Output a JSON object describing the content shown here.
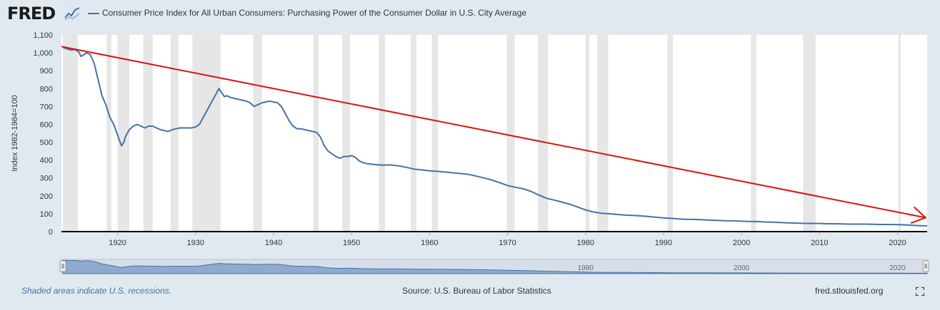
{
  "header": {
    "logo_text": "FRED",
    "logo_icon": "line-chart-icon",
    "series_title": "Consumer Price Index for All Urban Consumers: Purchasing Power of the Consumer Dollar in U.S. City Average"
  },
  "footer": {
    "recession_note": "Shaded areas indicate U.S. recessions.",
    "source": "Source: U.S. Bureau of Labor Statistics",
    "site": "fred.stlouisfed.org",
    "fullscreen_icon": "fullscreen-icon"
  },
  "colors": {
    "background": "#e1e9f0",
    "plot_background": "#ffffff",
    "series_line": "#4572a7",
    "recession_shade": "#e6e6e6",
    "annotation_arrow": "#dd1111",
    "navigator_fill": "#8fa9cf"
  },
  "chart_data": {
    "type": "line",
    "title": "Consumer Price Index for All Urban Consumers: Purchasing Power of the Consumer Dollar in U.S. City Average",
    "ylabel": "Index 1982-1984=100",
    "xlabel": "",
    "ylim": [
      0,
      1100
    ],
    "xlim": [
      1912.8,
      2023.8
    ],
    "y_ticks": [
      0,
      100,
      200,
      300,
      400,
      500,
      600,
      700,
      800,
      900,
      1000,
      1100
    ],
    "y_tick_labels": [
      "0",
      "100",
      "200",
      "300",
      "400",
      "500",
      "600",
      "700",
      "800",
      "900",
      "1,000",
      "1,100"
    ],
    "x_ticks": [
      1920,
      1930,
      1940,
      1950,
      1960,
      1970,
      1980,
      1990,
      2000,
      2010,
      2020
    ],
    "x_tick_labels": [
      "1920",
      "1930",
      "1940",
      "1950",
      "1960",
      "1970",
      "1980",
      "1990",
      "2000",
      "2010",
      "2020"
    ],
    "navigator_labels": [
      {
        "year": 1980,
        "label": "1980"
      },
      {
        "year": 2000,
        "label": "2000"
      },
      {
        "year": 2020,
        "label": "2020"
      }
    ],
    "grid": "off",
    "recessions": [
      [
        1913.0,
        1914.9
      ],
      [
        1918.6,
        1919.2
      ],
      [
        1920.0,
        1921.5
      ],
      [
        1923.3,
        1924.5
      ],
      [
        1926.8,
        1927.8
      ],
      [
        1929.6,
        1933.2
      ],
      [
        1937.4,
        1938.5
      ],
      [
        1945.1,
        1945.8
      ],
      [
        1948.8,
        1949.8
      ],
      [
        1953.5,
        1954.3
      ],
      [
        1957.6,
        1958.3
      ],
      [
        1960.3,
        1961.1
      ],
      [
        1969.9,
        1970.9
      ],
      [
        1973.9,
        1975.2
      ],
      [
        1980.0,
        1980.5
      ],
      [
        1981.5,
        1982.9
      ],
      [
        1990.5,
        1991.2
      ],
      [
        2001.2,
        2001.9
      ],
      [
        2007.9,
        2009.5
      ],
      [
        2020.1,
        2020.4
      ]
    ],
    "series": [
      {
        "values": [
          [
            1913.0,
            1030
          ],
          [
            1913.5,
            1022
          ],
          [
            1914.0,
            1015
          ],
          [
            1914.5,
            1018
          ],
          [
            1915.0,
            1007
          ],
          [
            1915.3,
            980
          ],
          [
            1915.7,
            990
          ],
          [
            1916.0,
            1000
          ],
          [
            1916.5,
            990
          ],
          [
            1917.0,
            940
          ],
          [
            1917.5,
            850
          ],
          [
            1918.0,
            760
          ],
          [
            1918.5,
            710
          ],
          [
            1919.0,
            640
          ],
          [
            1919.5,
            600
          ],
          [
            1920.0,
            540
          ],
          [
            1920.5,
            480
          ],
          [
            1920.8,
            500
          ],
          [
            1921.0,
            530
          ],
          [
            1921.5,
            570
          ],
          [
            1922.0,
            590
          ],
          [
            1922.5,
            600
          ],
          [
            1923.0,
            590
          ],
          [
            1923.5,
            580
          ],
          [
            1924.0,
            590
          ],
          [
            1924.5,
            590
          ],
          [
            1925.0,
            580
          ],
          [
            1925.5,
            570
          ],
          [
            1926.0,
            565
          ],
          [
            1926.5,
            560
          ],
          [
            1927.0,
            570
          ],
          [
            1927.5,
            575
          ],
          [
            1928.0,
            580
          ],
          [
            1928.5,
            580
          ],
          [
            1929.0,
            580
          ],
          [
            1929.5,
            580
          ],
          [
            1930.0,
            585
          ],
          [
            1930.5,
            600
          ],
          [
            1931.0,
            640
          ],
          [
            1931.5,
            680
          ],
          [
            1932.0,
            720
          ],
          [
            1932.5,
            760
          ],
          [
            1933.0,
            800
          ],
          [
            1933.3,
            780
          ],
          [
            1933.7,
            755
          ],
          [
            1934.0,
            760
          ],
          [
            1934.5,
            750
          ],
          [
            1935.0,
            745
          ],
          [
            1935.5,
            740
          ],
          [
            1936.0,
            735
          ],
          [
            1936.5,
            730
          ],
          [
            1937.0,
            720
          ],
          [
            1937.5,
            700
          ],
          [
            1938.0,
            710
          ],
          [
            1938.5,
            720
          ],
          [
            1939.0,
            725
          ],
          [
            1939.5,
            730
          ],
          [
            1940.0,
            725
          ],
          [
            1940.5,
            720
          ],
          [
            1941.0,
            700
          ],
          [
            1941.5,
            660
          ],
          [
            1942.0,
            620
          ],
          [
            1942.5,
            590
          ],
          [
            1943.0,
            575
          ],
          [
            1943.5,
            575
          ],
          [
            1944.0,
            570
          ],
          [
            1944.5,
            565
          ],
          [
            1945.0,
            560
          ],
          [
            1945.5,
            555
          ],
          [
            1946.0,
            530
          ],
          [
            1946.5,
            480
          ],
          [
            1947.0,
            450
          ],
          [
            1947.5,
            435
          ],
          [
            1948.0,
            420
          ],
          [
            1948.5,
            410
          ],
          [
            1949.0,
            420
          ],
          [
            1949.5,
            420
          ],
          [
            1950.0,
            425
          ],
          [
            1950.5,
            415
          ],
          [
            1951.0,
            395
          ],
          [
            1951.5,
            385
          ],
          [
            1952.0,
            380
          ],
          [
            1952.5,
            378
          ],
          [
            1953.0,
            375
          ],
          [
            1954.0,
            372
          ],
          [
            1955.0,
            373
          ],
          [
            1956.0,
            368
          ],
          [
            1957.0,
            360
          ],
          [
            1958.0,
            350
          ],
          [
            1959.0,
            345
          ],
          [
            1960.0,
            340
          ],
          [
            1961.0,
            337
          ],
          [
            1962.0,
            333
          ],
          [
            1963.0,
            329
          ],
          [
            1964.0,
            325
          ],
          [
            1965.0,
            320
          ],
          [
            1966.0,
            310
          ],
          [
            1967.0,
            300
          ],
          [
            1968.0,
            288
          ],
          [
            1969.0,
            274
          ],
          [
            1970.0,
            258
          ],
          [
            1971.0,
            248
          ],
          [
            1972.0,
            240
          ],
          [
            1973.0,
            225
          ],
          [
            1974.0,
            205
          ],
          [
            1975.0,
            186
          ],
          [
            1976.0,
            176
          ],
          [
            1977.0,
            165
          ],
          [
            1978.0,
            153
          ],
          [
            1979.0,
            137
          ],
          [
            1980.0,
            121
          ],
          [
            1981.0,
            110
          ],
          [
            1982.0,
            103
          ],
          [
            1983.0,
            100
          ],
          [
            1984.0,
            96
          ],
          [
            1985.0,
            93
          ],
          [
            1986.0,
            91
          ],
          [
            1987.0,
            88
          ],
          [
            1988.0,
            85
          ],
          [
            1989.0,
            81
          ],
          [
            1990.0,
            77
          ],
          [
            1991.0,
            74
          ],
          [
            1992.0,
            71
          ],
          [
            1993.0,
            69
          ],
          [
            1994.0,
            68
          ],
          [
            1995.0,
            66
          ],
          [
            1996.0,
            64
          ],
          [
            1997.0,
            62
          ],
          [
            1998.0,
            61
          ],
          [
            1999.0,
            60
          ],
          [
            2000.0,
            58
          ],
          [
            2001.0,
            57
          ],
          [
            2002.0,
            56
          ],
          [
            2003.0,
            54
          ],
          [
            2004.0,
            53
          ],
          [
            2005.0,
            51
          ],
          [
            2006.0,
            49
          ],
          [
            2007.0,
            48
          ],
          [
            2008.0,
            46
          ],
          [
            2009.0,
            46
          ],
          [
            2010.0,
            46
          ],
          [
            2011.0,
            44
          ],
          [
            2012.0,
            44
          ],
          [
            2013.0,
            43
          ],
          [
            2014.0,
            42
          ],
          [
            2015.0,
            42
          ],
          [
            2016.0,
            42
          ],
          [
            2017.0,
            41
          ],
          [
            2018.0,
            40
          ],
          [
            2019.0,
            40
          ],
          [
            2020.0,
            39
          ],
          [
            2021.0,
            38
          ],
          [
            2022.0,
            35
          ],
          [
            2023.0,
            33
          ],
          [
            2023.8,
            32
          ]
        ]
      }
    ],
    "annotation_arrow": {
      "from": [
        1912.8,
        1035
      ],
      "to": [
        2023.6,
        78
      ],
      "color": "#dd1111"
    }
  }
}
